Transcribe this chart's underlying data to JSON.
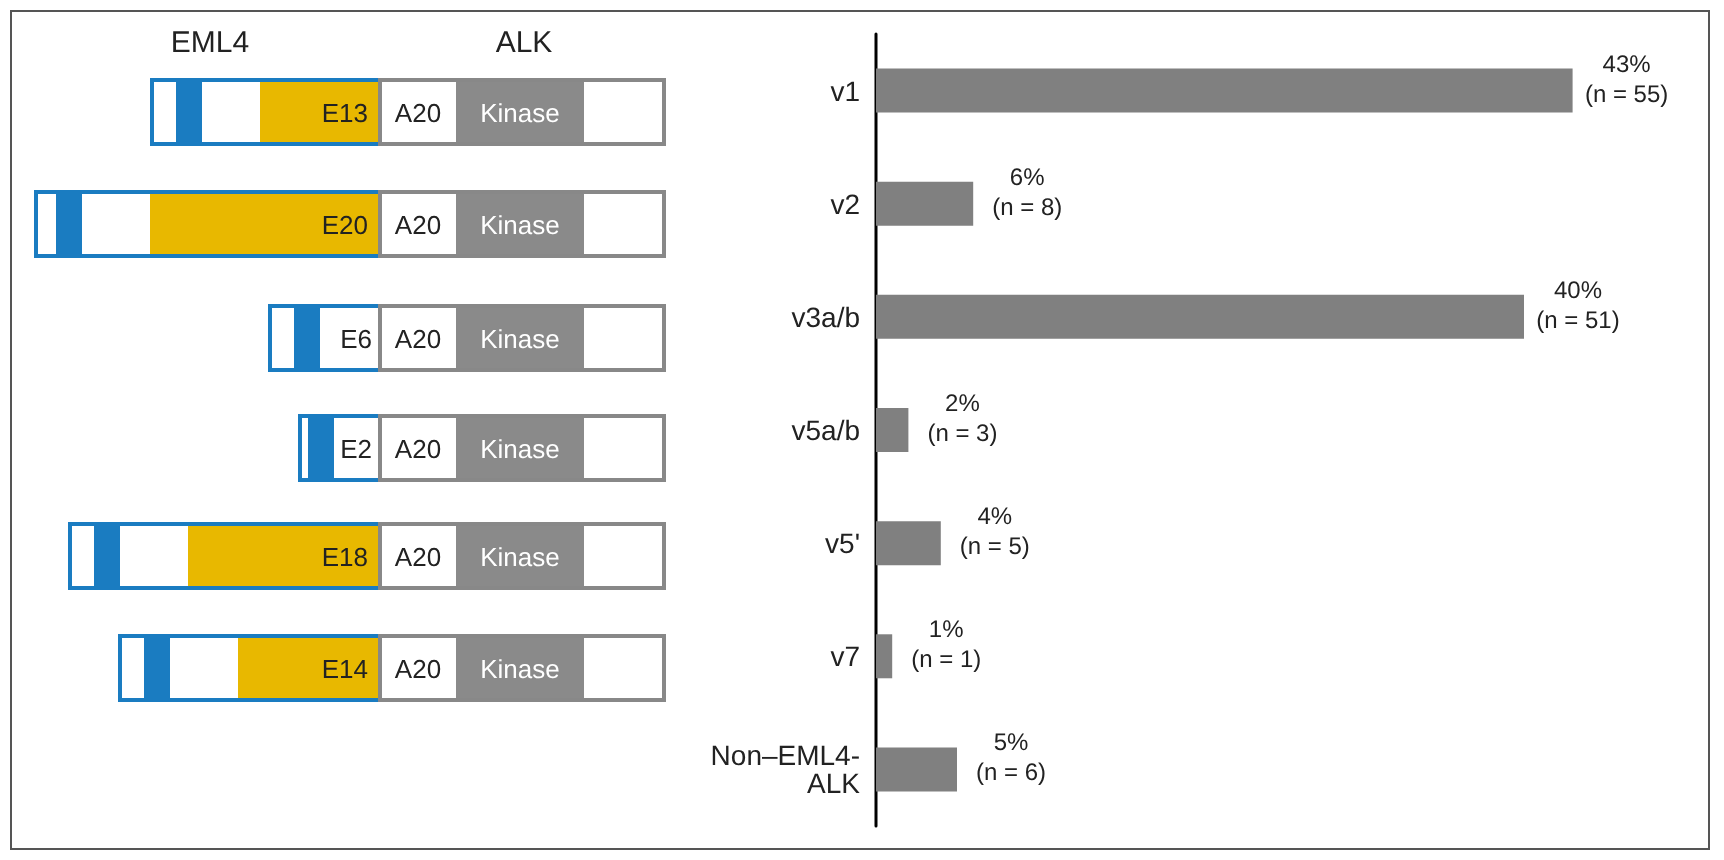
{
  "chart_data": {
    "type": "bar",
    "orientation": "horizontal",
    "categories": [
      "v1",
      "v2",
      "v3a/b",
      "v5a/b",
      "v5'",
      "v7",
      "Non–EML4-\nALK"
    ],
    "values": [
      43,
      6,
      40,
      2,
      4,
      1,
      5
    ],
    "color": "#808080",
    "value_labels": [
      "43%\n(n = 55)",
      "6%\n(n = 8)",
      "40%\n(n = 51)",
      "2%\n(n = 3)",
      "4%\n(n = 5)",
      "1%\n(n = 1)",
      "5%\n(n = 6)"
    ],
    "annotations": [
      "EML4",
      "ALK",
      "A20",
      "Kinase",
      "E13",
      "E20",
      "E6",
      "E2",
      "E18",
      "E14"
    ]
  }
}
